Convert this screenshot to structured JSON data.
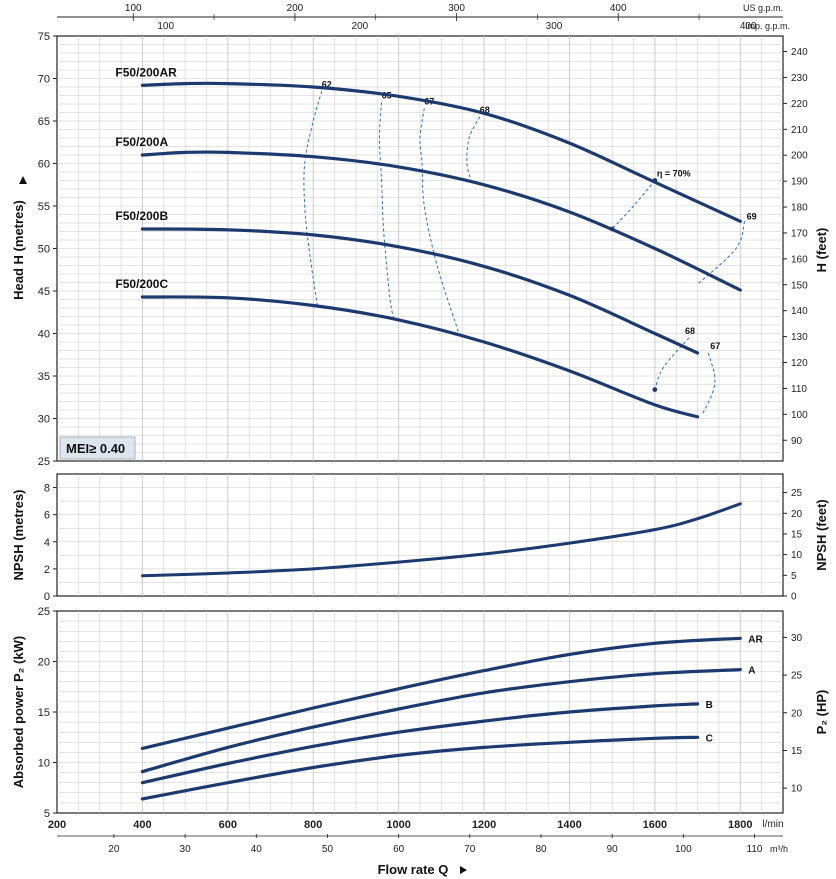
{
  "chart_data": [
    {
      "type": "line",
      "ylabel": "Head H  (metres)",
      "y2label": "H  (feet)",
      "ylim": [
        25,
        75
      ],
      "yticks": [
        25,
        30,
        35,
        40,
        45,
        50,
        55,
        60,
        65,
        70,
        75
      ],
      "y2lim": [
        82,
        246
      ],
      "y2ticks": [
        90,
        100,
        110,
        120,
        130,
        140,
        150,
        160,
        170,
        180,
        190,
        200,
        210,
        220,
        230,
        240
      ],
      "xlim": [
        200,
        1900
      ],
      "badge": "MEI≥ 0.40",
      "series": [
        {
          "name": "F50/200AR",
          "x": [
            400,
            500,
            600,
            800,
            1000,
            1200,
            1400,
            1600,
            1800
          ],
          "y": [
            69.2,
            69.4,
            69.4,
            69.0,
            67.9,
            65.9,
            62.4,
            57.8,
            53.2
          ]
        },
        {
          "name": "F50/200A",
          "x": [
            400,
            500,
            600,
            800,
            1000,
            1200,
            1400,
            1600,
            1800
          ],
          "y": [
            61.0,
            61.3,
            61.3,
            60.8,
            59.6,
            57.5,
            54.3,
            50.0,
            45.1
          ]
        },
        {
          "name": "F50/200B",
          "x": [
            400,
            600,
            800,
            1000,
            1200,
            1400,
            1600,
            1700
          ],
          "y": [
            52.3,
            52.2,
            51.6,
            50.2,
            47.9,
            44.5,
            40.0,
            37.7
          ]
        },
        {
          "name": "F50/200C",
          "x": [
            400,
            600,
            800,
            1000,
            1200,
            1400,
            1600,
            1700
          ],
          "y": [
            44.3,
            44.2,
            43.3,
            41.6,
            39.0,
            35.6,
            31.6,
            30.2
          ]
        }
      ],
      "efficiency": {
        "labels": [
          "62",
          "65",
          "67",
          "68",
          "η = 70%",
          "69",
          "68",
          "67"
        ],
        "curves": [
          {
            "label": "62",
            "points": [
              [
                820,
                68.5
              ],
              [
                800,
                65
              ],
              [
                780,
                60
              ],
              [
                780,
                55
              ],
              [
                790,
                50
              ],
              [
                810,
                43.2
              ]
            ]
          },
          {
            "label": "65",
            "points": [
              [
                960,
                67.2
              ],
              [
                955,
                63
              ],
              [
                960,
                58
              ],
              [
                965,
                52
              ],
              [
                980,
                44
              ],
              [
                990,
                41.6
              ]
            ]
          },
          {
            "label": "67",
            "points": [
              [
                1060,
                66.5
              ],
              [
                1050,
                63
              ],
              [
                1055,
                60
              ],
              [
                1060,
                55
              ],
              [
                1090,
                48
              ],
              [
                1140,
                40.2
              ]
            ]
          },
          {
            "label": "68",
            "points": [
              [
                1190,
                65.5
              ],
              [
                1165,
                63
              ],
              [
                1160,
                60
              ],
              [
                1170,
                58
              ]
            ]
          },
          {
            "label": "η = 70%",
            "points": [
              [
                1600,
                58
              ],
              [
                1550,
                55
              ],
              [
                1500,
                52.3
              ]
            ]
          },
          {
            "label": "69",
            "points": [
              [
                1810,
                53.2
              ],
              [
                1790,
                50
              ],
              [
                1700,
                45.8
              ]
            ]
          },
          {
            "label": "68",
            "points": [
              [
                1680,
                39.5
              ],
              [
                1620,
                36
              ],
              [
                1600,
                33.4
              ]
            ]
          },
          {
            "label": "67",
            "points": [
              [
                1725,
                37.7
              ],
              [
                1740,
                35
              ],
              [
                1735,
                33
              ],
              [
                1710,
                30.4
              ]
            ]
          }
        ]
      }
    },
    {
      "type": "line",
      "ylabel": "NPSH  (metres)",
      "y2label": "NPSH  (feet)",
      "ylim": [
        0,
        9
      ],
      "yticks": [
        0,
        2,
        4,
        6,
        8
      ],
      "y2lim": [
        0,
        29.5
      ],
      "y2ticks": [
        0,
        5,
        10,
        15,
        20,
        25
      ],
      "xlim": [
        200,
        1900
      ],
      "series": [
        {
          "name": "NPSH",
          "x": [
            400,
            600,
            800,
            1000,
            1200,
            1400,
            1600,
            1700,
            1800
          ],
          "y": [
            1.5,
            1.7,
            2.0,
            2.5,
            3.1,
            3.9,
            4.9,
            5.7,
            6.8
          ]
        }
      ]
    },
    {
      "type": "line",
      "ylabel": "Absorbed power  P₂  (kW)",
      "y2label": "P₂  (HP)",
      "ylim": [
        5,
        25
      ],
      "yticks": [
        5,
        10,
        15,
        20,
        25
      ],
      "y2lim": [
        6.7,
        33.5
      ],
      "y2ticks": [
        10,
        15,
        20,
        25,
        30
      ],
      "xlabel": "Flow rate  Q",
      "xunit": "l/min",
      "xlim": [
        200,
        1900
      ],
      "xticks": [
        200,
        400,
        600,
        800,
        1000,
        1200,
        1400,
        1600,
        1800
      ],
      "x_m3h_unit": "m³/h",
      "x_m3h_ticks": [
        20,
        30,
        40,
        50,
        60,
        70,
        80,
        90,
        100,
        110
      ],
      "series": [
        {
          "name": "AR",
          "x": [
            400,
            600,
            800,
            1000,
            1200,
            1400,
            1600,
            1800
          ],
          "y": [
            11.4,
            13.4,
            15.4,
            17.3,
            19.1,
            20.7,
            21.8,
            22.3
          ]
        },
        {
          "name": "A",
          "x": [
            400,
            600,
            800,
            1000,
            1200,
            1400,
            1600,
            1800
          ],
          "y": [
            9.1,
            11.5,
            13.5,
            15.3,
            16.9,
            18.0,
            18.8,
            19.2
          ]
        },
        {
          "name": "B",
          "x": [
            400,
            600,
            800,
            1000,
            1200,
            1400,
            1600,
            1700
          ],
          "y": [
            8.0,
            9.9,
            11.6,
            13.0,
            14.1,
            15.0,
            15.6,
            15.8
          ]
        },
        {
          "name": "C",
          "x": [
            400,
            600,
            800,
            1000,
            1200,
            1400,
            1600,
            1700
          ],
          "y": [
            6.4,
            8.0,
            9.5,
            10.7,
            11.5,
            12.0,
            12.4,
            12.5
          ]
        }
      ]
    }
  ],
  "top_axis": {
    "us_label": "US g.p.m.",
    "us_ticks": [
      100,
      200,
      300,
      400
    ],
    "imp_label": "Imp. g.p.m.",
    "imp_ticks": [
      100,
      200,
      300,
      400
    ]
  },
  "colors": {
    "curve": "#1c3a6e",
    "efficiency": "#2e6fbf",
    "grid": "#c8c8c8",
    "badge": "#dde6ee"
  }
}
